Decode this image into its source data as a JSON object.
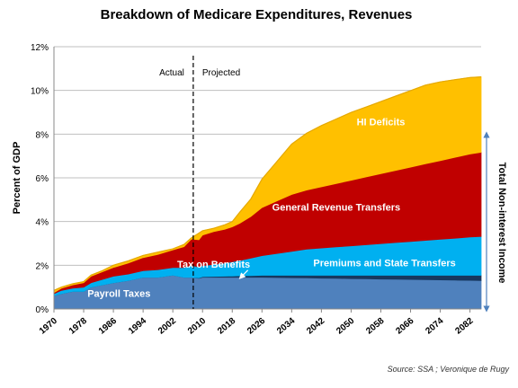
{
  "chart_data": {
    "type": "area",
    "title": "Breakdown of Medicare Expenditures, Revenues",
    "ylabel": "Percent of GDP",
    "right_label": "Total Non-interest Income",
    "source": "Source: SSA ; Veronique de Rugy",
    "x_tick_labels": [
      "1970",
      "1978",
      "1986",
      "1994",
      "2002",
      "2010",
      "2018",
      "2026",
      "2034",
      "2042",
      "2050",
      "2058",
      "2066",
      "2074",
      "2082"
    ],
    "y_tick_labels": [
      "0%",
      "2%",
      "4%",
      "6%",
      "8%",
      "10%",
      "12%"
    ],
    "ylim": [
      0,
      12
    ],
    "xlim": [
      1970,
      2085
    ],
    "stacking": "cumulative",
    "divider": {
      "year": 2007.5,
      "left_label": "Actual",
      "right_label": "Projected"
    },
    "x": [
      1970,
      1972,
      1975,
      1978,
      1980,
      1983,
      1986,
      1990,
      1994,
      1998,
      2002,
      2005,
      2007,
      2009,
      2010,
      2013,
      2016,
      2018,
      2020,
      2023,
      2026,
      2030,
      2034,
      2038,
      2042,
      2046,
      2050,
      2054,
      2058,
      2062,
      2066,
      2070,
      2074,
      2078,
      2082,
      2085
    ],
    "series": [
      {
        "name": "Payroll Taxes",
        "color": "#4f81bd",
        "values": [
          0.6,
          0.7,
          0.8,
          0.8,
          1.0,
          1.1,
          1.2,
          1.3,
          1.45,
          1.45,
          1.55,
          1.45,
          1.45,
          1.4,
          1.45,
          1.45,
          1.45,
          1.45,
          1.45,
          1.45,
          1.45,
          1.44,
          1.43,
          1.42,
          1.41,
          1.4,
          1.39,
          1.38,
          1.37,
          1.36,
          1.35,
          1.34,
          1.33,
          1.32,
          1.31,
          1.3
        ]
      },
      {
        "name": "Tax on Benefits",
        "color": "#17375e",
        "values": [
          0.0,
          0.0,
          0.0,
          0.0,
          0.0,
          0.0,
          0.0,
          0.0,
          0.0,
          0.0,
          0.0,
          0.0,
          0.0,
          0.02,
          0.03,
          0.04,
          0.05,
          0.06,
          0.07,
          0.08,
          0.09,
          0.1,
          0.11,
          0.12,
          0.13,
          0.14,
          0.15,
          0.16,
          0.17,
          0.18,
          0.19,
          0.2,
          0.21,
          0.22,
          0.23,
          0.24
        ]
      },
      {
        "name": "Premiums and State Transfers",
        "color": "#00b0f0",
        "values": [
          0.1,
          0.15,
          0.15,
          0.2,
          0.2,
          0.25,
          0.3,
          0.3,
          0.3,
          0.35,
          0.35,
          0.45,
          0.55,
          0.5,
          0.5,
          0.55,
          0.6,
          0.65,
          0.7,
          0.8,
          0.9,
          1.0,
          1.1,
          1.2,
          1.25,
          1.3,
          1.35,
          1.4,
          1.45,
          1.5,
          1.55,
          1.6,
          1.65,
          1.7,
          1.75,
          1.78
        ]
      },
      {
        "name": "General Revenue Transfers",
        "color": "#c00000",
        "values": [
          0.05,
          0.1,
          0.15,
          0.2,
          0.3,
          0.35,
          0.4,
          0.5,
          0.6,
          0.7,
          0.8,
          0.95,
          1.2,
          1.25,
          1.4,
          1.5,
          1.55,
          1.6,
          1.7,
          1.9,
          2.2,
          2.4,
          2.6,
          2.7,
          2.8,
          2.9,
          3.0,
          3.1,
          3.2,
          3.3,
          3.4,
          3.5,
          3.6,
          3.7,
          3.8,
          3.85
        ]
      },
      {
        "name": "HI Deficits",
        "color": "#ffc000",
        "values": [
          0.1,
          0.05,
          0.05,
          0.05,
          0.05,
          0.05,
          0.1,
          0.1,
          0.1,
          0.1,
          0.05,
          0.1,
          0.05,
          0.3,
          0.2,
          0.15,
          0.2,
          0.24,
          0.5,
          0.8,
          1.3,
          1.8,
          2.3,
          2.6,
          2.8,
          2.95,
          3.1,
          3.2,
          3.3,
          3.4,
          3.5,
          3.6,
          3.6,
          3.55,
          3.5,
          3.45
        ]
      }
    ],
    "annotations": [
      {
        "text": "Payroll Taxes",
        "x": 1987.5,
        "y": 0.55
      },
      {
        "text": "Tax on Benefits",
        "x": 2013,
        "y": 1.9,
        "arrow_to": [
          2020,
          1.48
        ]
      },
      {
        "text": "Premiums and State Transfers",
        "x": 2059,
        "y": 1.95
      },
      {
        "text": "General Revenue Transfers",
        "x": 2046,
        "y": 4.5
      },
      {
        "text": "HI Deficits",
        "x": 2058,
        "y": 8.4
      }
    ]
  }
}
